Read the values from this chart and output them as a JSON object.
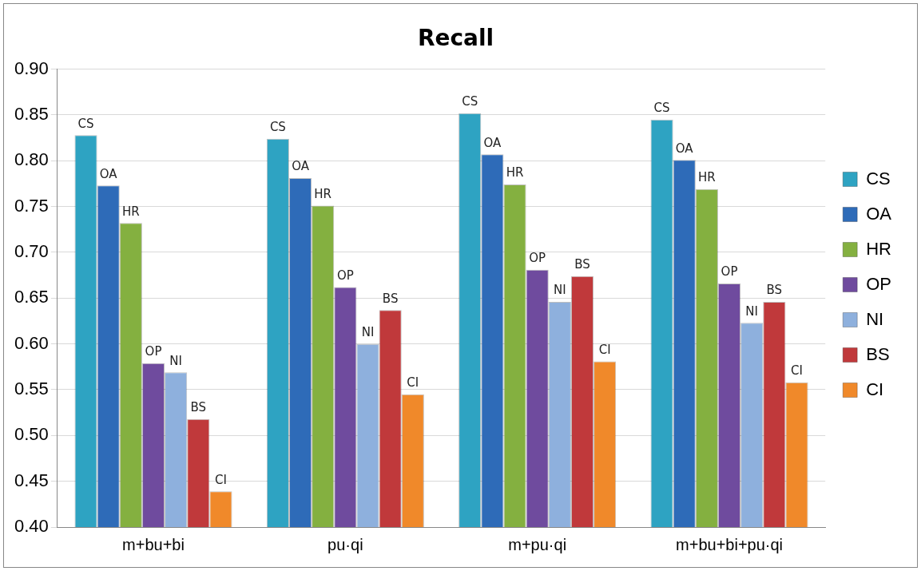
{
  "chart_data": {
    "type": "bar",
    "title": "Recall",
    "categories": [
      "m+bu+bi",
      "pu·qi",
      "m+pu·qi",
      "m+bu+bi+pu·qi"
    ],
    "series": [
      {
        "name": "CS",
        "color": "#2ea3c2",
        "values": [
          0.828,
          0.824,
          0.852,
          0.845
        ]
      },
      {
        "name": "OA",
        "color": "#2e6bb8",
        "values": [
          0.773,
          0.781,
          0.807,
          0.801
        ]
      },
      {
        "name": "HR",
        "color": "#84b040",
        "values": [
          0.732,
          0.751,
          0.774,
          0.769
        ]
      },
      {
        "name": "OP",
        "color": "#6f4b9e",
        "values": [
          0.579,
          0.662,
          0.681,
          0.666
        ]
      },
      {
        "name": "NI",
        "color": "#8eb0dd",
        "values": [
          0.569,
          0.6,
          0.646,
          0.623
        ]
      },
      {
        "name": "BS",
        "color": "#c0393b",
        "values": [
          0.518,
          0.637,
          0.674,
          0.646
        ]
      },
      {
        "name": "CI",
        "color": "#f0892a",
        "values": [
          0.439,
          0.545,
          0.581,
          0.558
        ]
      }
    ],
    "ylim": [
      0.4,
      0.9
    ],
    "yticks": [
      {
        "value": 0.4,
        "label": "0.40"
      },
      {
        "value": 0.45,
        "label": "0.45"
      },
      {
        "value": 0.5,
        "label": "0.50"
      },
      {
        "value": 0.55,
        "label": "0.55"
      },
      {
        "value": 0.6,
        "label": "0.60"
      },
      {
        "value": 0.65,
        "label": "0.65"
      },
      {
        "value": 0.7,
        "label": "0.70"
      },
      {
        "value": 0.75,
        "label": "0.75"
      },
      {
        "value": 0.8,
        "label": "0.80"
      },
      {
        "value": 0.85,
        "label": "0.85"
      },
      {
        "value": 0.9,
        "label": "0.90"
      }
    ],
    "grid": "y",
    "legend": "right"
  }
}
